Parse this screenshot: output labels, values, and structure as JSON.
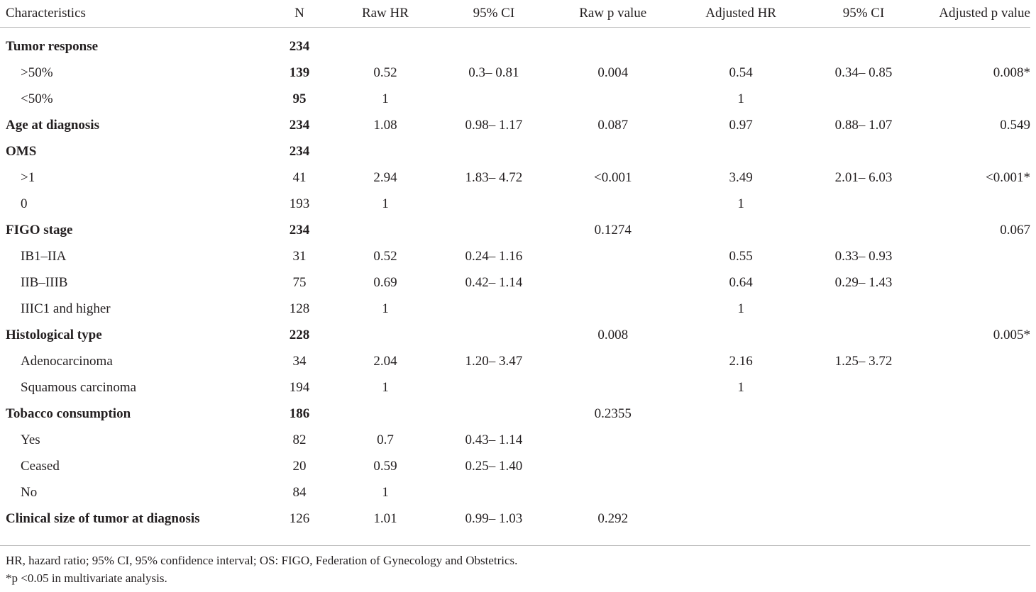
{
  "table": {
    "headers": [
      "Characteristics",
      "N",
      "Raw HR",
      "95% CI",
      "Raw p value",
      "Adjusted HR",
      "95% CI",
      "Adjusted p value"
    ],
    "rows": [
      {
        "label": "Tumor response",
        "group": true,
        "n_bold": true,
        "cells": [
          "234",
          "",
          "",
          "",
          "",
          "",
          ""
        ]
      },
      {
        "label": ">50%",
        "group": false,
        "n_bold": true,
        "cells": [
          "139",
          "0.52",
          "0.3– 0.81",
          "0.004",
          "0.54",
          "0.34– 0.85",
          "0.008*"
        ]
      },
      {
        "label": "<50%",
        "group": false,
        "n_bold": true,
        "cells": [
          "95",
          "1",
          "",
          "",
          "1",
          "",
          ""
        ]
      },
      {
        "label": "Age at diagnosis",
        "group": true,
        "n_bold": true,
        "cells": [
          "234",
          "1.08",
          "0.98– 1.17",
          "0.087",
          "0.97",
          "0.88– 1.07",
          "0.549"
        ]
      },
      {
        "label": "OMS",
        "group": true,
        "n_bold": true,
        "cells": [
          "234",
          "",
          "",
          "",
          "",
          "",
          ""
        ]
      },
      {
        "label": ">1",
        "group": false,
        "n_bold": false,
        "cells": [
          "41",
          "2.94",
          "1.83– 4.72",
          "<0.001",
          "3.49",
          "2.01– 6.03",
          "<0.001*"
        ]
      },
      {
        "label": "0",
        "group": false,
        "n_bold": false,
        "cells": [
          "193",
          "1",
          "",
          "",
          "1",
          "",
          ""
        ]
      },
      {
        "label": "FIGO stage",
        "group": true,
        "n_bold": true,
        "cells": [
          "234",
          "",
          "",
          "0.1274",
          "",
          "",
          "0.067"
        ]
      },
      {
        "label": "IB1–IIA",
        "group": false,
        "n_bold": false,
        "cells": [
          "31",
          "0.52",
          "0.24– 1.16",
          "",
          "0.55",
          "0.33– 0.93",
          ""
        ]
      },
      {
        "label": "IIB–IIIB",
        "group": false,
        "n_bold": false,
        "cells": [
          "75",
          "0.69",
          "0.42– 1.14",
          "",
          "0.64",
          "0.29– 1.43",
          ""
        ]
      },
      {
        "label": "IIIC1 and higher",
        "group": false,
        "n_bold": false,
        "cells": [
          "128",
          "1",
          "",
          "",
          "1",
          "",
          ""
        ]
      },
      {
        "label": "Histological type",
        "group": true,
        "n_bold": true,
        "cells": [
          "228",
          "",
          "",
          "0.008",
          "",
          "",
          "0.005*"
        ]
      },
      {
        "label": "Adenocarcinoma",
        "group": false,
        "n_bold": false,
        "cells": [
          "34",
          "2.04",
          "1.20– 3.47",
          "",
          "2.16",
          "1.25– 3.72",
          ""
        ]
      },
      {
        "label": "Squamous carcinoma",
        "group": false,
        "n_bold": false,
        "cells": [
          "194",
          "1",
          "",
          "",
          "1",
          "",
          ""
        ]
      },
      {
        "label": "Tobacco consumption",
        "group": true,
        "n_bold": true,
        "cells": [
          "186",
          "",
          "",
          "0.2355",
          "",
          "",
          ""
        ]
      },
      {
        "label": "Yes",
        "group": false,
        "n_bold": false,
        "cells": [
          "82",
          "0.7",
          "0.43– 1.14",
          "",
          "",
          "",
          ""
        ]
      },
      {
        "label": "Ceased",
        "group": false,
        "n_bold": false,
        "cells": [
          "20",
          "0.59",
          "0.25– 1.40",
          "",
          "",
          "",
          ""
        ]
      },
      {
        "label": "No",
        "group": false,
        "n_bold": false,
        "cells": [
          "84",
          "1",
          "",
          "",
          "",
          "",
          ""
        ]
      },
      {
        "label": "Clinical size of tumor at diagnosis",
        "group": true,
        "n_bold": false,
        "cells": [
          "126",
          "1.01",
          "0.99– 1.03",
          "0.292",
          "",
          "",
          ""
        ]
      }
    ]
  },
  "footnotes": {
    "abbreviations": "HR, hazard ratio; 95% CI, 95% confidence interval; OS: FIGO, Federation of Gynecology and Obstetrics.",
    "significance": "*p <0.05 in multivariate analysis."
  },
  "colors": {
    "text": "#231f20",
    "rule": "#bdbdbd"
  }
}
